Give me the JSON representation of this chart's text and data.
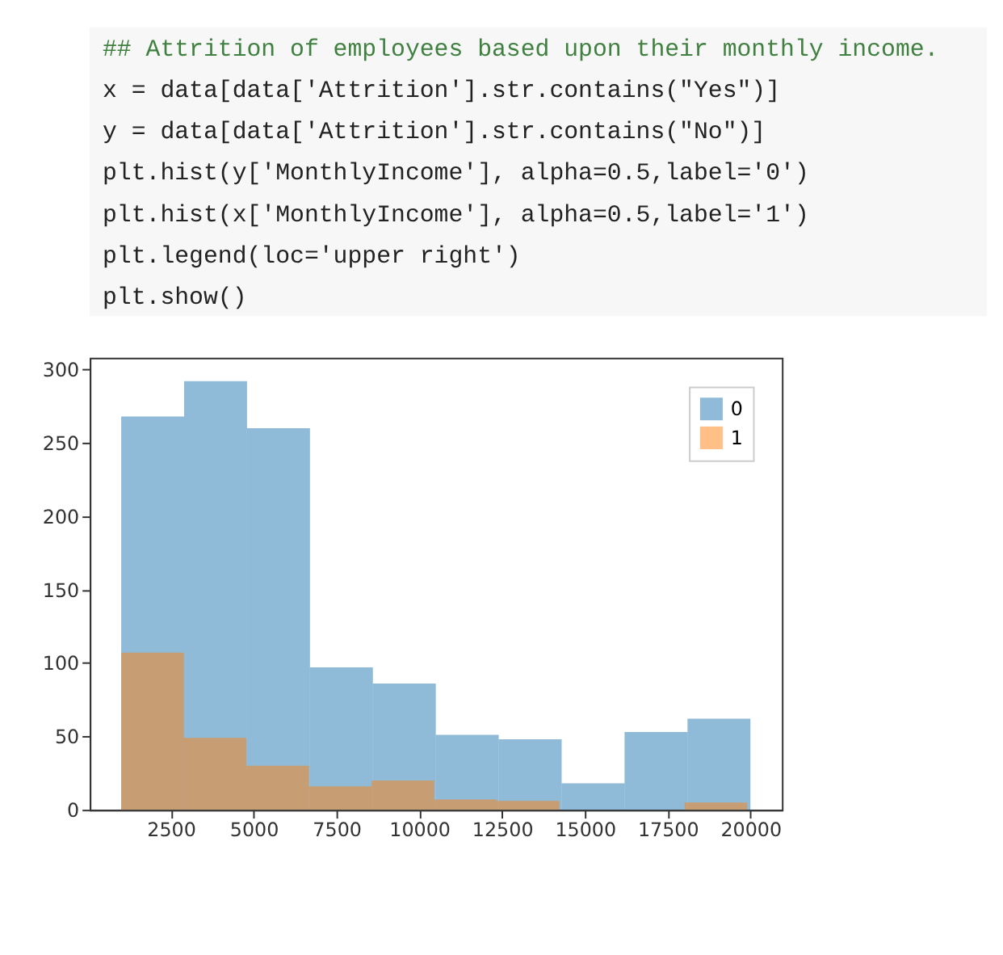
{
  "chart_data": {
    "type": "histogram",
    "annotations": [
      "## Attrition of employees based upon their monthly income.",
      "x = data[data['Attrition'].str.contains(\"Yes\")]",
      "y = data[data['Attrition'].str.contains(\"No\")]",
      "plt.hist(y['MonthlyIncome'], alpha=0.5,label='0')",
      "plt.hist(x['MonthlyIncome'], alpha=0.5,label='1')",
      "plt.legend(loc='upper right')",
      "plt.show()"
    ],
    "series": [
      {
        "name": "0",
        "color": "#1f77b4",
        "values": [
          268,
          292,
          260,
          97,
          86,
          51,
          48,
          18,
          53,
          62
        ]
      },
      {
        "name": "1",
        "color": "#ff7f0e",
        "bins": [
          1000,
          2890,
          4780,
          6670,
          8560,
          10450,
          12340,
          14230,
          16120,
          18010,
          19900
        ],
        "values": [
          107,
          49,
          30,
          16,
          20,
          7,
          6,
          0,
          0,
          5
        ]
      }
    ],
    "bins": [
      1000,
      2900,
      4800,
      6700,
      8600,
      10500,
      12400,
      14300,
      16200,
      18100,
      20000
    ],
    "xlim": [
      50,
      20950
    ],
    "xticks": [
      2500,
      5000,
      7500,
      10000,
      12500,
      15000,
      17500,
      20000
    ],
    "ylim": [
      0,
      308
    ],
    "yticks": [
      0,
      50,
      100,
      150,
      200,
      250,
      300
    ],
    "grid": false,
    "legend": "top right"
  }
}
